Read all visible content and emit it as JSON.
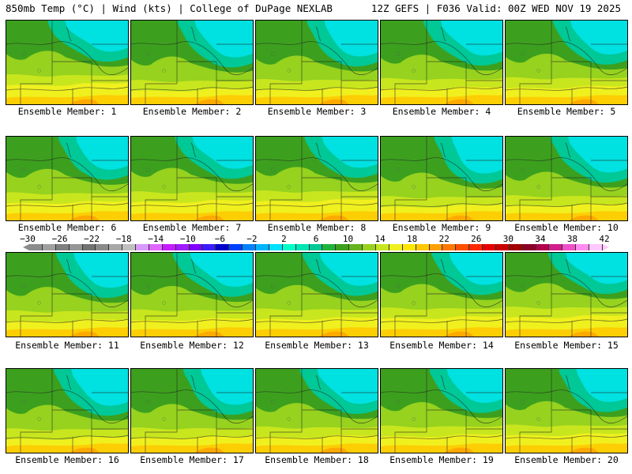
{
  "header": {
    "title": "850mb Temp (°C) | Wind (kts) | College of DuPage NEXLAB",
    "run_info": "12Z GEFS | F036 Valid: 00Z WED NOV 19 2025"
  },
  "colorbar": {
    "ticks": [
      "-30",
      "-26",
      "-22",
      "-18",
      "-14",
      "-10",
      "-6",
      "-2",
      "2",
      "6",
      "10",
      "14",
      "18",
      "22",
      "26",
      "30",
      "34",
      "38",
      "42"
    ],
    "colors": [
      "#8c8c8c",
      "#a0a0a0",
      "#7f7f7f",
      "#969696",
      "#737373",
      "#8a8a8a",
      "#a8a8a8",
      "#c0c0c0",
      "#d999ff",
      "#e066ff",
      "#c71cff",
      "#a01cff",
      "#7f00ff",
      "#3c1cff",
      "#0000c8",
      "#0040ff",
      "#0082ff",
      "#00b4ff",
      "#00e1ff",
      "#00ffc8",
      "#00e6b4",
      "#00c896",
      "#1eb43c",
      "#3ca01e",
      "#64b41e",
      "#96d21e",
      "#c8e61e",
      "#f0f01e",
      "#ffe600",
      "#ffc800",
      "#ffa000",
      "#ff7800",
      "#ff5000",
      "#ff2800",
      "#e60000",
      "#c80000",
      "#a00000",
      "#8c0028",
      "#b4004b",
      "#d21e8c",
      "#f050c8",
      "#ff8cf0",
      "#ffc8ff"
    ],
    "left_arrow_color": "#8c8c8c",
    "right_arrow_color": "#ffc8ff"
  },
  "members": [
    {
      "label": "Ensemble Member: 1"
    },
    {
      "label": "Ensemble Member: 2"
    },
    {
      "label": "Ensemble Member: 3"
    },
    {
      "label": "Ensemble Member: 4"
    },
    {
      "label": "Ensemble Member: 5"
    },
    {
      "label": "Ensemble Member: 6"
    },
    {
      "label": "Ensemble Member: 7"
    },
    {
      "label": "Ensemble Member: 8"
    },
    {
      "label": "Ensemble Member: 9"
    },
    {
      "label": "Ensemble Member: 10"
    },
    {
      "label": "Ensemble Member: 11"
    },
    {
      "label": "Ensemble Member: 12"
    },
    {
      "label": "Ensemble Member: 13"
    },
    {
      "label": "Ensemble Member: 14"
    },
    {
      "label": "Ensemble Member: 15"
    },
    {
      "label": "Ensemble Member: 16"
    },
    {
      "label": "Ensemble Member: 17"
    },
    {
      "label": "Ensemble Member: 18"
    },
    {
      "label": "Ensemble Member: 19"
    },
    {
      "label": "Ensemble Member: 20"
    }
  ],
  "palette": {
    "cold_cyan": "#00e1e1",
    "teal": "#00c896",
    "green": "#3ca01e",
    "yellow_green": "#96d21e",
    "light_green": "#c8e61e",
    "yellow": "#f0f01e",
    "gold": "#ffc800",
    "orange": "#ffa000",
    "blue": "#1e90ff"
  }
}
